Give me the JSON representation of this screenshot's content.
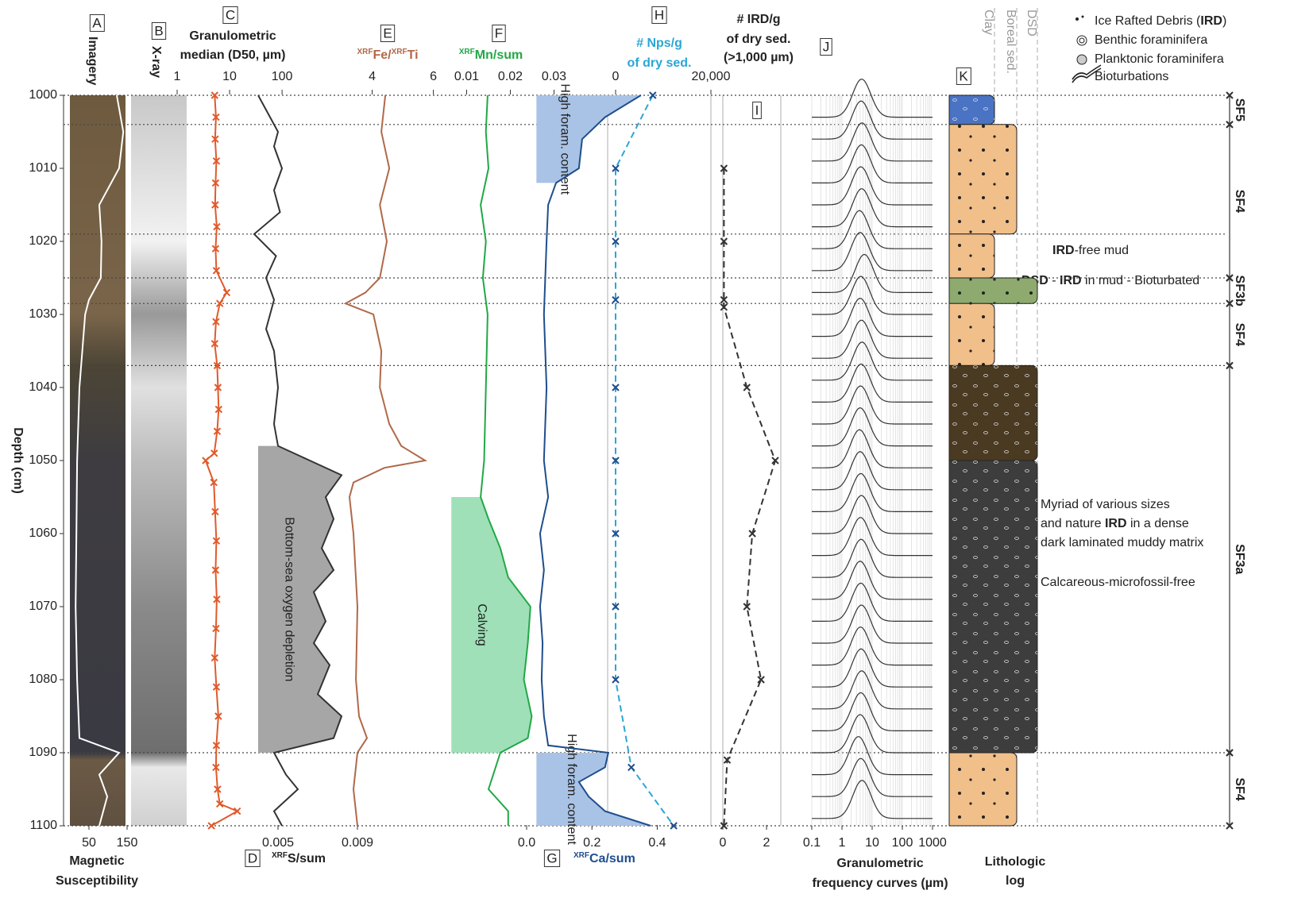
{
  "depth_axis": {
    "label": "Depth (cm)",
    "ylim": [
      1000,
      1100
    ],
    "yticks": [
      1000,
      1010,
      1020,
      1030,
      1040,
      1050,
      1060,
      1070,
      1080,
      1090,
      1100
    ]
  },
  "unit_boundaries": [
    1000,
    1004,
    1019,
    1025,
    1028.5,
    1037,
    1090,
    1100
  ],
  "chart_data": [
    {
      "type": "line",
      "letter": "A",
      "title": "Imagery",
      "x_label": [
        "Magnetic",
        "Susceptibility"
      ],
      "series": [
        {
          "color": "#ffffff",
          "axis": "bottom",
          "xlim": [
            0,
            150
          ],
          "xticks": [
            50,
            150
          ],
          "depths": [
            1000,
            1005,
            1010,
            1015,
            1020,
            1025,
            1028,
            1030,
            1040,
            1050,
            1060,
            1070,
            1080,
            1088,
            1090,
            1093,
            1096,
            1100
          ],
          "values": [
            123,
            140,
            129,
            77,
            83,
            81,
            50,
            40,
            25,
            19,
            17,
            15,
            19,
            25,
            129,
            77,
            98,
            77
          ]
        }
      ]
    },
    {
      "type": "image",
      "letter": "B",
      "title": "X-ray"
    },
    {
      "type": "line",
      "letter": "C",
      "title": [
        "Granulometric",
        "median (D50, µm)"
      ],
      "letter2": "D",
      "x_label": {
        "sup": "XRF",
        "text": "S/sum"
      },
      "series": [
        {
          "color": "#e05a2b",
          "axis": "top",
          "log": true,
          "marker": "x",
          "xlim": [
            1,
            200
          ],
          "xticks": [
            1,
            10,
            100
          ],
          "depths": [
            1000,
            1003,
            1006,
            1009,
            1012,
            1015,
            1018,
            1021,
            1024,
            1027,
            1028.5,
            1031,
            1034,
            1037,
            1040,
            1043,
            1046,
            1049,
            1050,
            1053,
            1057,
            1061,
            1065,
            1069,
            1073,
            1077,
            1081,
            1085,
            1089,
            1092,
            1095,
            1097,
            1098,
            1100
          ],
          "values": [
            5.2,
            5.5,
            5.3,
            5.6,
            5.4,
            5.3,
            5.7,
            5.4,
            5.6,
            8.8,
            6.5,
            5.5,
            5.2,
            5.8,
            6.0,
            6.2,
            5.8,
            5.1,
            3.5,
            5.0,
            5.3,
            5.6,
            5.4,
            5.7,
            5.5,
            5.2,
            5.6,
            6.1,
            5.6,
            5.5,
            5.9,
            6.5,
            14,
            4.5
          ]
        },
        {
          "color": "#333333",
          "axis": "bottom",
          "xlim": [
            0.003,
            0.01
          ],
          "xticks": [
            0.005,
            0.009
          ],
          "depths": [
            1000,
            1002,
            1005,
            1007,
            1010,
            1013,
            1016,
            1019,
            1022,
            1025,
            1028,
            1032,
            1035,
            1040,
            1045,
            1048,
            1050,
            1052,
            1055,
            1058,
            1062,
            1065,
            1068,
            1072,
            1075,
            1078,
            1082,
            1085,
            1088,
            1090,
            1093,
            1095,
            1098,
            1100
          ],
          "values": [
            0.004,
            0.0044,
            0.005,
            0.0048,
            0.0052,
            0.0048,
            0.0051,
            0.0038,
            0.0049,
            0.0044,
            0.0048,
            0.0044,
            0.0048,
            0.005,
            0.0048,
            0.005,
            0.0066,
            0.0082,
            0.0074,
            0.0078,
            0.0072,
            0.0078,
            0.0068,
            0.0074,
            0.0068,
            0.0076,
            0.007,
            0.0082,
            0.0078,
            0.0048,
            0.0054,
            0.006,
            0.0048,
            0.0052
          ],
          "shades": [
            {
              "from": 1048,
              "to": 1090,
              "baseline": 0.004,
              "color": "#a6a6a6",
              "label": "Bottom-sea oxygen depletion"
            }
          ]
        }
      ]
    },
    {
      "type": "line",
      "letter": "E",
      "title": [
        {
          "sup": "XRF",
          "text": "Fe/"
        },
        {
          "sup": "XRF",
          "text": "Ti"
        }
      ],
      "series": [
        {
          "color": "#b0694a",
          "axis": "top",
          "xlim": [
            3,
            6.4
          ],
          "xticks": [
            4,
            6
          ],
          "depths": [
            1000,
            1005,
            1010,
            1015,
            1020,
            1025,
            1027,
            1028.5,
            1030,
            1035,
            1040,
            1045,
            1048,
            1050,
            1051,
            1053,
            1055,
            1060,
            1070,
            1080,
            1085,
            1088,
            1090,
            1095,
            1100
          ],
          "values": [
            4.43,
            4.3,
            4.56,
            4.25,
            4.48,
            4.25,
            3.78,
            3.13,
            4.04,
            4.3,
            4.25,
            4.56,
            4.95,
            5.73,
            4.4,
            3.39,
            3.26,
            3.39,
            3.52,
            3.47,
            3.57,
            3.83,
            3.52,
            3.39,
            3.52
          ]
        }
      ]
    },
    {
      "type": "line",
      "letter": "F",
      "title": {
        "sup": "XRF",
        "text": "Mn/sum"
      },
      "series": [
        {
          "color": "#21a846",
          "axis": "top",
          "xlim": [
            0.005,
            0.035
          ],
          "xticks": [
            0.01,
            0.02,
            0.03
          ],
          "depths": [
            1000,
            1005,
            1010,
            1015,
            1020,
            1025,
            1030,
            1040,
            1050,
            1055,
            1058,
            1062,
            1066,
            1070,
            1075,
            1080,
            1085,
            1088,
            1090,
            1095,
            1098,
            1100
          ],
          "values": [
            0.0148,
            0.0144,
            0.015,
            0.0132,
            0.0144,
            0.0137,
            0.0148,
            0.0144,
            0.014,
            0.0132,
            0.015,
            0.0177,
            0.0195,
            0.0246,
            0.024,
            0.0231,
            0.0249,
            0.024,
            0.0177,
            0.015,
            0.0195,
            0.0195
          ],
          "shades": [
            {
              "from": 1055,
              "to": 1090,
              "baseline": 0.0065,
              "color": "#9fe0b8",
              "label": "Calving"
            }
          ]
        }
      ]
    },
    {
      "type": "line",
      "letter": "G",
      "x_label": {
        "sup": "XRF",
        "text": "Ca/sum"
      },
      "letter2": "H",
      "title": [
        "# Nps/g",
        "of dry sed."
      ],
      "series": [
        {
          "color": "#1f4e8c",
          "axis": "bottom",
          "xlim": [
            0,
            0.45
          ],
          "xticks": [
            {
              "value": 0,
              "label": "0.0"
            },
            0.2,
            0.4
          ],
          "depths": [
            1000,
            1003,
            1006,
            1010,
            1012,
            1015,
            1020,
            1030,
            1040,
            1050,
            1055,
            1060,
            1065,
            1070,
            1075,
            1080,
            1085,
            1089,
            1090,
            1092,
            1094,
            1096,
            1098,
            1100
          ],
          "values": [
            0.35,
            0.24,
            0.17,
            0.16,
            0.09,
            0.066,
            0.061,
            0.053,
            0.061,
            0.053,
            0.066,
            0.041,
            0.053,
            0.041,
            0.049,
            0.046,
            0.053,
            0.066,
            0.25,
            0.24,
            0.16,
            0.19,
            0.24,
            0.38
          ],
          "shades": [
            {
              "from": 1000,
              "to": 1012,
              "baseline": 0.03,
              "color": "#a9c3e6",
              "label": "High foram. content"
            },
            {
              "from": 1090,
              "to": 1100,
              "baseline": 0.03,
              "color": "#a9c3e6",
              "label": "High foram. content"
            }
          ]
        },
        {
          "color": "#2aa6d6",
          "axis": "top",
          "dash": true,
          "marker": "x",
          "xlim": [
            0,
            20000
          ],
          "xticks": [
            0,
            {
              "value": 20000,
              "label": "20,000"
            }
          ],
          "depths": [
            1000,
            1010,
            1020,
            1028,
            1040,
            1050,
            1060,
            1070,
            1080,
            1092,
            1100
          ],
          "values": [
            7800,
            0,
            0,
            0,
            0,
            0,
            0,
            0,
            0,
            3300,
            12200
          ]
        }
      ]
    },
    {
      "type": "line",
      "letter": "I",
      "title": [
        "# IRD/g",
        "of dry sed.",
        "(>1,000 µm)"
      ],
      "series": [
        {
          "color": "#333333",
          "axis": "bottom",
          "dash": true,
          "marker": "x",
          "xlim": [
            -0.2,
            2.8
          ],
          "xticks": [
            0,
            2
          ],
          "depths": [
            1010,
            1020,
            1028,
            1029,
            1040,
            1050,
            1060,
            1070,
            1080,
            1091,
            1100
          ],
          "values": [
            0.05,
            0.05,
            0.05,
            0.05,
            1.1,
            2.4,
            1.35,
            1.1,
            1.75,
            0.2,
            0.05
          ]
        }
      ]
    },
    {
      "type": "curves",
      "letter": "J",
      "x_label": [
        "Granulometric",
        "frequency curves (µm)"
      ],
      "xlim": [
        0.1,
        1000
      ],
      "xticks": [
        0.1,
        1,
        10,
        100,
        1000
      ],
      "curves": [
        {
          "depth": 1003,
          "mode": 4.5
        },
        {
          "depth": 1006,
          "mode": 4.3
        },
        {
          "depth": 1009,
          "mode": 4.6
        },
        {
          "depth": 1012,
          "mode": 4.4
        },
        {
          "depth": 1015,
          "mode": 4.2
        },
        {
          "depth": 1018,
          "mode": 4.5
        },
        {
          "depth": 1021,
          "mode": 3.8
        },
        {
          "depth": 1024,
          "mode": 4.0
        },
        {
          "depth": 1027,
          "mode": 5.5
        },
        {
          "depth": 1030,
          "mode": 4.2
        },
        {
          "depth": 1033,
          "mode": 4.0
        },
        {
          "depth": 1036,
          "mode": 4.4
        },
        {
          "depth": 1039,
          "mode": 4.6
        },
        {
          "depth": 1042,
          "mode": 4.3
        },
        {
          "depth": 1045,
          "mode": 4.1
        },
        {
          "depth": 1048,
          "mode": 4.0
        },
        {
          "depth": 1051,
          "mode": 3.8
        },
        {
          "depth": 1054,
          "mode": 4.0
        },
        {
          "depth": 1057,
          "mode": 4.2
        },
        {
          "depth": 1060,
          "mode": 4.4
        },
        {
          "depth": 1063,
          "mode": 4.1
        },
        {
          "depth": 1066,
          "mode": 4.3
        },
        {
          "depth": 1069,
          "mode": 4.0
        },
        {
          "depth": 1072,
          "mode": 4.2
        },
        {
          "depth": 1075,
          "mode": 4.4
        },
        {
          "depth": 1078,
          "mode": 4.1
        },
        {
          "depth": 1081,
          "mode": 4.3
        },
        {
          "depth": 1084,
          "mode": 4.5
        },
        {
          "depth": 1087,
          "mode": 4.2
        },
        {
          "depth": 1090,
          "mode": 4.0
        },
        {
          "depth": 1093,
          "mode": 3.5
        },
        {
          "depth": 1096,
          "mode": 4.2
        },
        {
          "depth": 1099,
          "mode": 4.6
        }
      ]
    },
    {
      "type": "log",
      "letter": "K",
      "x_label": [
        "Lithologic",
        "log"
      ],
      "columns": [
        "Clay",
        "Boreal sed.",
        "DSD"
      ],
      "units": [
        {
          "from": 1000,
          "to": 1004,
          "color": "#4a73c4",
          "width": "Clay"
        },
        {
          "from": 1004,
          "to": 1019,
          "color": "#f1bf8a",
          "width": "Boreal sed."
        },
        {
          "from": 1019,
          "to": 1025,
          "color": "#f1bf8a",
          "width": "Clay"
        },
        {
          "from": 1025,
          "to": 1028.5,
          "color": "#8faa6e",
          "width": "DSD"
        },
        {
          "from": 1028.5,
          "to": 1037,
          "color": "#f1bf8a",
          "width": "Clay"
        },
        {
          "from": 1037,
          "to": 1050,
          "color": "#4a3a22",
          "width": "DSD"
        },
        {
          "from": 1050,
          "to": 1090,
          "color": "#3d3d3d",
          "width": "DSD"
        },
        {
          "from": 1090,
          "to": 1100,
          "color": "#f1bf8a",
          "width": "Boreal sed."
        }
      ],
      "facies": [
        {
          "label": "SF5",
          "from": 1000,
          "to": 1004
        },
        {
          "label": "SF4",
          "from": 1004,
          "to": 1025
        },
        {
          "label": "SF3b",
          "from": 1025,
          "to": 1028.5
        },
        {
          "label": "SF4",
          "from": 1028.5,
          "to": 1037
        },
        {
          "label": "SF3a",
          "from": 1037,
          "to": 1090
        },
        {
          "label": "SF4",
          "from": 1090,
          "to": 1100
        }
      ],
      "descriptions": {
        "ird_free": [
          "IRD",
          "-free mud"
        ],
        "dsd": [
          "DSD",
          " - ",
          "IRD",
          " in mud - Bioturbated"
        ],
        "myriad": [
          "Myriad of various sizes",
          "and nature ",
          "IRD",
          " in a dense",
          "dark laminated muddy matrix"
        ],
        "calcareous": "Calcareous-microfossil-free"
      }
    }
  ],
  "legend": {
    "ird": [
      "Ice Rafted Debris (",
      "IRD",
      ")"
    ],
    "items": [
      "Benthic foraminifera",
      "Planktonic foraminifera",
      "Bioturbations"
    ]
  }
}
